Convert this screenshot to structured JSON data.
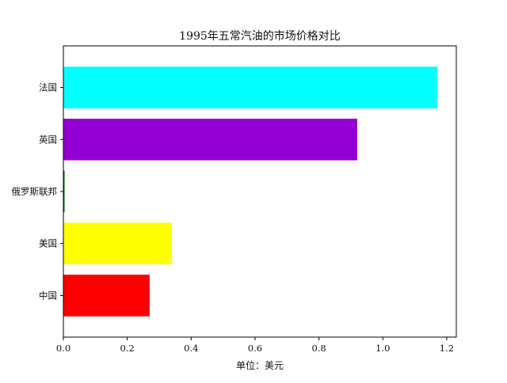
{
  "chart_data": {
    "type": "bar",
    "orientation": "horizontal",
    "title": "1995年五常汽油的市场价格对比",
    "xlabel": "单位：美元",
    "ylabel": "",
    "categories": [
      "中国",
      "美国",
      "俄罗斯联邦",
      "英国",
      "法国"
    ],
    "values": [
      0.27,
      0.34,
      0.003,
      0.92,
      1.17
    ],
    "colors": [
      "#ff0000",
      "#ffff00",
      "#006400",
      "#9400d3",
      "#00ffff"
    ],
    "xlim": [
      0,
      1.23
    ],
    "xticks": [
      0.0,
      0.2,
      0.4,
      0.6,
      0.8,
      1.0,
      1.2
    ],
    "xtick_labels": [
      "0.0",
      "0.2",
      "0.4",
      "0.6",
      "0.8",
      "1.0",
      "1.2"
    ],
    "grid": false,
    "legend": "none"
  }
}
